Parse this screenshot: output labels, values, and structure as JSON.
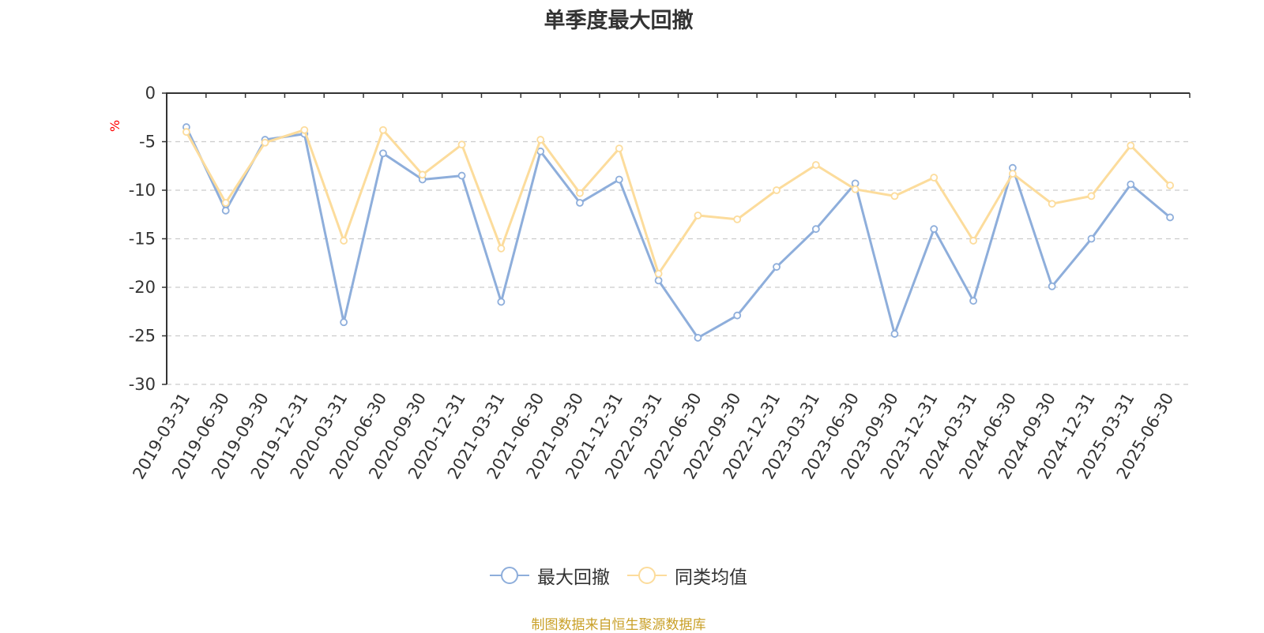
{
  "chart_data": {
    "type": "line",
    "title": "单季度最大回撤",
    "ylabel": "%",
    "ylim": [
      -30,
      0
    ],
    "yticks": [
      0,
      -5,
      -10,
      -15,
      -20,
      -25,
      -30
    ],
    "grid": true,
    "legend_position": "bottom-center",
    "categories": [
      "2019-03-31",
      "2019-06-30",
      "2019-09-30",
      "2019-12-31",
      "2020-03-31",
      "2020-06-30",
      "2020-09-30",
      "2020-12-31",
      "2021-03-31",
      "2021-06-30",
      "2021-09-30",
      "2021-12-31",
      "2022-03-31",
      "2022-06-30",
      "2022-09-30",
      "2022-12-31",
      "2023-03-31",
      "2023-06-30",
      "2023-09-30",
      "2023-12-31",
      "2024-03-31",
      "2024-06-30",
      "2024-09-30",
      "2024-12-31",
      "2025-03-31",
      "2025-06-30"
    ],
    "series": [
      {
        "name": "最大回撤",
        "color": "#8eaedb",
        "values": [
          -3.5,
          -12.1,
          -4.8,
          -4.2,
          -23.6,
          -6.2,
          -8.9,
          -8.5,
          -21.5,
          -6.0,
          -11.3,
          -8.9,
          -19.3,
          -25.2,
          -22.9,
          -17.9,
          -14.0,
          -9.3,
          -24.8,
          -14.0,
          -21.4,
          -7.7,
          -19.9,
          -15.0,
          -9.4,
          -12.8
        ]
      },
      {
        "name": "同类均值",
        "color": "#fcdc9c",
        "values": [
          -4.0,
          -11.3,
          -5.1,
          -3.8,
          -15.2,
          -3.8,
          -8.4,
          -5.3,
          -16.0,
          -4.8,
          -10.3,
          -5.7,
          -18.6,
          -12.6,
          -13.0,
          -10.0,
          -7.4,
          -9.9,
          -10.6,
          -8.7,
          -15.2,
          -8.3,
          -11.4,
          -10.6,
          -5.4,
          -9.5
        ]
      }
    ]
  },
  "footer": {
    "source": "制图数据来自恒生聚源数据库",
    "source_color": "#c9a028"
  },
  "colors": {
    "axis": "#333333",
    "grid": "#cccccc",
    "ylabel": "#ff0000"
  }
}
